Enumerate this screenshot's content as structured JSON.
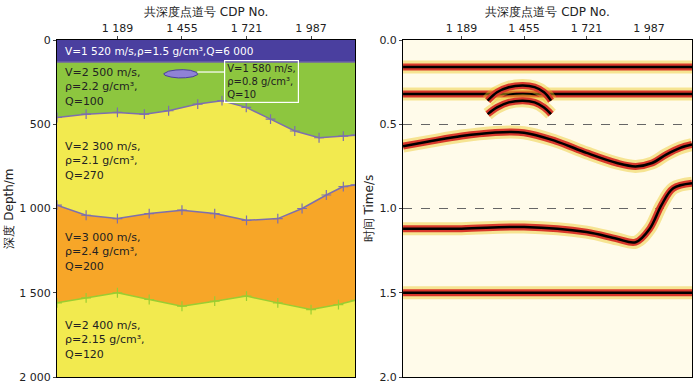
{
  "chart_data": [
    {
      "type": "layered_model",
      "x_label": "共深度点道号 CDP No.",
      "y_label": "深度 Depth/m",
      "xlim": [
        940,
        2170
      ],
      "xticks": [
        {
          "value": 1189,
          "label": "1 189"
        },
        {
          "value": 1455,
          "label": "1 455"
        },
        {
          "value": 1721,
          "label": "1 721"
        },
        {
          "value": 1987,
          "label": "1 987"
        }
      ],
      "ylim": [
        2000,
        0
      ],
      "yticks": [
        0,
        500,
        {
          "value": 1000,
          "label": "1 000"
        },
        {
          "value": 1500,
          "label": "1 500"
        },
        {
          "value": 2000,
          "label": "2 000"
        }
      ],
      "layers": [
        {
          "color": "#4a3f9f",
          "label": [
            "V=1 520 m/s,ρ=1.5 g/cm³,Q=6 000"
          ]
        },
        {
          "color": "#8dc63f",
          "label": [
            "V=2 500 m/s,",
            "ρ=2.2 g/cm³,",
            "Q=100"
          ]
        },
        {
          "color": "#f2ea4f",
          "label": [
            "V=2 300 m/s,",
            "ρ=2.1 g/cm³,",
            "Q=270"
          ]
        },
        {
          "color": "#f7a628",
          "label": [
            "V=3 000 m/s,",
            "ρ=2.4 g/cm³,",
            "Q=200"
          ]
        },
        {
          "color": "#f2ea4f",
          "label": [
            "V=2 400 m/s,",
            "ρ=2.15 g/cm³,",
            "Q=120"
          ]
        }
      ],
      "interfaces": [
        {
          "color": "#6f62a8",
          "marker": "none",
          "x": [
            940,
            2170
          ],
          "depth": [
            130,
            130
          ]
        },
        {
          "color": "#7d6fae",
          "marker": "cross",
          "x": [
            940,
            1060,
            1189,
            1300,
            1400,
            1520,
            1620,
            1720,
            1820,
            1920,
            2020,
            2120,
            2170
          ],
          "depth": [
            460,
            440,
            430,
            440,
            420,
            380,
            360,
            400,
            470,
            540,
            580,
            570,
            565
          ]
        },
        {
          "color": "#7d6fae",
          "marker": "cross",
          "x": [
            940,
            1060,
            1189,
            1320,
            1455,
            1590,
            1721,
            1850,
            1950,
            2050,
            2120,
            2170
          ],
          "depth": [
            980,
            1040,
            1060,
            1030,
            1010,
            1030,
            1070,
            1060,
            1000,
            920,
            870,
            860
          ]
        },
        {
          "color": "#9acd32",
          "marker": "cross",
          "x": [
            940,
            1060,
            1189,
            1320,
            1455,
            1590,
            1721,
            1850,
            1987,
            2100,
            2170
          ],
          "depth": [
            1560,
            1530,
            1500,
            1540,
            1580,
            1550,
            1520,
            1560,
            1600,
            1570,
            1545
          ]
        }
      ],
      "anomaly": {
        "color": "#8f82d6",
        "label": [
          "V=1 580 m/s,",
          "ρ=0.8 g/cm³,",
          "Q=10"
        ],
        "x": [
          1380,
          1400,
          1430,
          1460,
          1490,
          1515,
          1520,
          1500,
          1470,
          1440,
          1410,
          1385,
          1380
        ],
        "depth": [
          200,
          185,
          178,
          176,
          180,
          192,
          205,
          218,
          224,
          225,
          220,
          210,
          200
        ]
      }
    },
    {
      "type": "seismic_section",
      "x_label": "共深度点道号 CDP No.",
      "y_label": "时间 Time/s",
      "xlim": [
        940,
        2170
      ],
      "xticks": [
        {
          "value": 1189,
          "label": "1 189"
        },
        {
          "value": 1455,
          "label": "1 455"
        },
        {
          "value": 1721,
          "label": "1 721"
        },
        {
          "value": 1987,
          "label": "1 987"
        }
      ],
      "ylim": [
        2,
        0
      ],
      "yticks": [
        {
          "value": 0,
          "label": "0.0"
        },
        0.5,
        {
          "value": 1,
          "label": "1.0"
        },
        1.5,
        {
          "value": 2,
          "label": "2.0"
        }
      ],
      "grid": true,
      "series": [
        {
          "color": "#000000",
          "x": [
            940,
            2170
          ],
          "time": [
            0.16,
            0.16
          ]
        },
        {
          "color": "#000000",
          "x": [
            940,
            2170
          ],
          "time": [
            0.32,
            0.32
          ]
        },
        {
          "color": "#000000",
          "x": [
            1300,
            1340,
            1390,
            1450,
            1500,
            1540,
            1570
          ],
          "time": [
            0.36,
            0.31,
            0.28,
            0.27,
            0.28,
            0.31,
            0.36
          ]
        },
        {
          "color": "#000000",
          "x": [
            1300,
            1340,
            1390,
            1450,
            1500,
            1540,
            1570
          ],
          "time": [
            0.44,
            0.4,
            0.37,
            0.36,
            0.37,
            0.4,
            0.44
          ]
        },
        {
          "color": "#000000",
          "x": [
            940,
            1060,
            1189,
            1320,
            1455,
            1590,
            1721,
            1850,
            1930,
            2000,
            2060,
            2120,
            2170
          ],
          "time": [
            0.63,
            0.6,
            0.57,
            0.55,
            0.55,
            0.6,
            0.67,
            0.73,
            0.75,
            0.73,
            0.68,
            0.64,
            0.62
          ]
        },
        {
          "color": "#000000",
          "x": [
            940,
            1189,
            1455,
            1721,
            1850,
            1930,
            1990,
            2040,
            2090,
            2170
          ],
          "time": [
            1.12,
            1.12,
            1.11,
            1.14,
            1.18,
            1.2,
            1.12,
            0.98,
            0.88,
            0.85
          ]
        },
        {
          "color": "#000000",
          "x": [
            940,
            2170
          ],
          "time": [
            1.5,
            1.5
          ]
        }
      ]
    }
  ]
}
